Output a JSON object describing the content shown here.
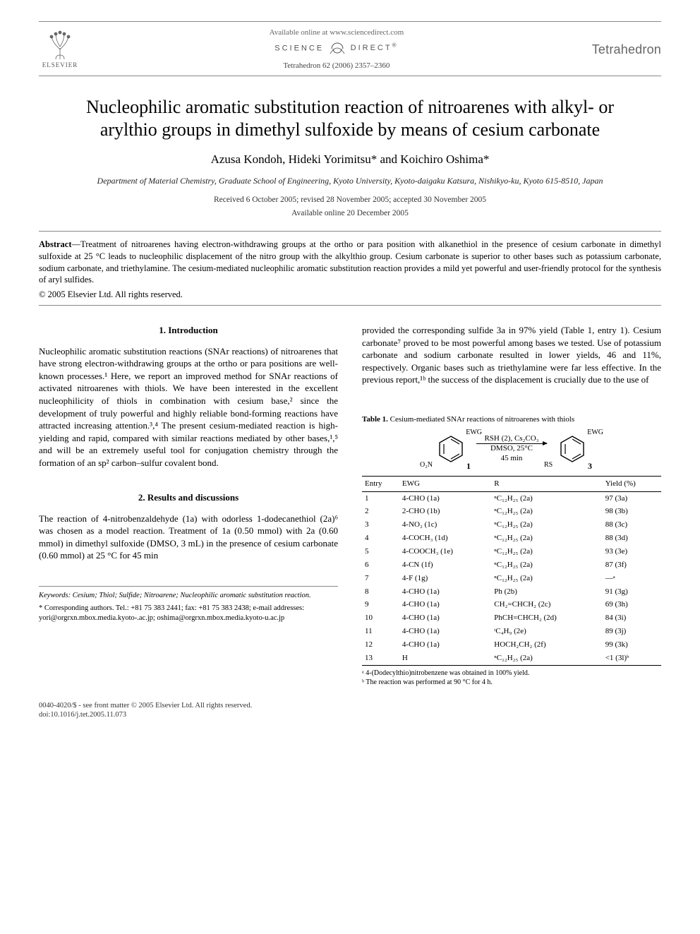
{
  "header": {
    "available_online": "Available online at www.sciencedirect.com",
    "science_direct": "SCIENCE @ DIRECT®",
    "journal_ref": "Tetrahedron 62 (2006) 2357–2360",
    "publisher": "ELSEVIER",
    "journal_side": "Tetrahedron"
  },
  "title": "Nucleophilic aromatic substitution reaction of nitroarenes with alkyl- or arylthio groups in dimethyl sulfoxide by means of cesium carbonate",
  "authors": "Azusa Kondoh, Hideki Yorimitsu* and Koichiro Oshima*",
  "affiliation": "Department of Material Chemistry, Graduate School of Engineering, Kyoto University, Kyoto-daigaku Katsura, Nishikyo-ku, Kyoto 615-8510, Japan",
  "dates": "Received 6 October 2005; revised 28 November 2005; accepted 30 November 2005",
  "available_date": "Available online 20 December 2005",
  "abstract_label": "Abstract",
  "abstract_text": "—Treatment of nitroarenes having electron-withdrawing groups at the ortho or para position with alkanethiol in the presence of cesium carbonate in dimethyl sulfoxide at 25 °C leads to nucleophilic displacement of the nitro group with the alkylthio group. Cesium carbonate is superior to other bases such as potassium carbonate, sodium carbonate, and triethylamine. The cesium-mediated nucleophilic aromatic substitution reaction provides a mild yet powerful and user-friendly protocol for the synthesis of aryl sulfides.",
  "copyright": "© 2005 Elsevier Ltd. All rights reserved.",
  "section1": {
    "heading": "1. Introduction",
    "p1": "Nucleophilic aromatic substitution reactions (SNAr reactions) of nitroarenes that have strong electron-withdrawing groups at the ortho or para positions are well-known processes.¹ Here, we report an improved method for SNAr reactions of activated nitroarenes with thiols. We have been interested in the excellent nucleophilicity of thiols in combination with cesium base,² since the development of truly powerful and highly reliable bond-forming reactions have attracted increasing attention.³,⁴ The present cesium-mediated reaction is high-yielding and rapid, compared with similar reactions mediated by other bases,¹,⁵ and will be an extremely useful tool for conjugation chemistry through the formation of an sp² carbon–sulfur covalent bond."
  },
  "section2": {
    "heading": "2. Results and discussions",
    "p1": "The reaction of 4-nitrobenzaldehyde (1a) with odorless 1-dodecanethiol (2a)⁶ was chosen as a model reaction. Treatment of 1a (0.50 mmol) with 2a (0.60 mmol) in dimethyl sulfoxide (DMSO, 3 mL) in the presence of cesium carbonate (0.60 mmol) at 25 °C for 45 min",
    "p2": "provided the corresponding sulfide 3a in 97% yield (Table 1, entry 1). Cesium carbonate⁷ proved to be most powerful among bases we tested. Use of potassium carbonate and sodium carbonate resulted in lower yields, 46 and 11%, respectively. Organic bases such as triethylamine were far less effective. In the previous report,¹ᵇ the success of the displacement is crucially due to the use of"
  },
  "table1": {
    "caption_label": "Table 1.",
    "caption_text": "Cesium-mediated SNAr reactions of nitroarenes with thiols",
    "scheme": {
      "left_label_top": "EWG",
      "left_label_bottom": "O₂N",
      "left_num": "1",
      "reagents_top": "RSH (2), Cs₂CO₃",
      "reagents_bottom1": "DMSO, 25°C",
      "reagents_bottom2": "45 min",
      "right_label_top": "EWG",
      "right_label_bottom": "RS",
      "right_num": "3"
    },
    "columns": [
      "Entry",
      "EWG",
      "R",
      "Yield (%)"
    ],
    "rows": [
      [
        "1",
        "4-CHO (1a)",
        "ⁿC₁₂H₂₅ (2a)",
        "97 (3a)"
      ],
      [
        "2",
        "2-CHO (1b)",
        "ⁿC₁₂H₂₅ (2a)",
        "98 (3b)"
      ],
      [
        "3",
        "4-NO₂ (1c)",
        "ⁿC₁₂H₂₅ (2a)",
        "88 (3c)"
      ],
      [
        "4",
        "4-COCH₃ (1d)",
        "ⁿC₁₂H₂₅ (2a)",
        "88 (3d)"
      ],
      [
        "5",
        "4-COOCH₃ (1e)",
        "ⁿC₁₂H₂₅ (2a)",
        "93 (3e)"
      ],
      [
        "6",
        "4-CN (1f)",
        "ⁿC₁₂H₂₅ (2a)",
        "87 (3f)"
      ],
      [
        "7",
        "4-F (1g)",
        "ⁿC₁₂H₂₅ (2a)",
        "—ᵃ"
      ],
      [
        "8",
        "4-CHO (1a)",
        "Ph (2b)",
        "91 (3g)"
      ],
      [
        "9",
        "4-CHO (1a)",
        "CH₂=CHCH₂ (2c)",
        "69 (3h)"
      ],
      [
        "10",
        "4-CHO (1a)",
        "PhCH=CHCH₂ (2d)",
        "84 (3i)"
      ],
      [
        "11",
        "4-CHO (1a)",
        "ᵗC₄H₉ (2e)",
        "89 (3j)"
      ],
      [
        "12",
        "4-CHO (1a)",
        "HOCH₂CH₂ (2f)",
        "99 (3k)"
      ],
      [
        "13",
        "H",
        "ⁿC₁₂H₂₅ (2a)",
        "<1 (3l)ᵇ"
      ]
    ],
    "notes": [
      "ᵃ 4-(Dodecylthio)nitrobenzene was obtained in 100% yield.",
      "ᵇ The reaction was performed at 90 °C for 4 h."
    ]
  },
  "footnotes": {
    "keywords_label": "Keywords:",
    "keywords": "Cesium; Thiol; Sulfide; Nitroarene; Nucleophilic aromatic substitution reaction.",
    "corr": "* Corresponding authors. Tel.: +81 75 383 2441; fax: +81 75 383 2438; e-mail addresses: yori@orgrxn.mbox.media.kyoto-.ac.jp; oshima@orgrxn.mbox.media.kyoto-u.ac.jp"
  },
  "footer": {
    "left1": "0040-4020/$ - see front matter © 2005 Elsevier Ltd. All rights reserved.",
    "left2": "doi:10.1016/j.tet.2005.11.073"
  },
  "colors": {
    "text": "#000000",
    "muted": "#666666",
    "rule": "#888888",
    "background": "#ffffff"
  }
}
